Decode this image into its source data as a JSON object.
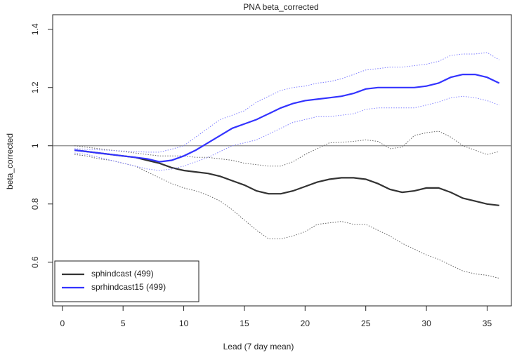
{
  "chart_data": {
    "type": "line",
    "title": "PNA beta_corrected",
    "x_label": "Lead (7 day mean)",
    "y_label": "beta_corrected",
    "x": [
      1,
      2,
      3,
      4,
      5,
      6,
      7,
      8,
      9,
      10,
      11,
      12,
      13,
      14,
      15,
      16,
      17,
      18,
      19,
      20,
      21,
      22,
      23,
      24,
      25,
      26,
      27,
      28,
      29,
      30,
      31,
      32,
      33,
      34,
      35,
      36
    ],
    "xlim": [
      -0.8,
      37
    ],
    "xticks": [
      0,
      5,
      10,
      15,
      20,
      25,
      30,
      35
    ],
    "ylim": [
      0.45,
      1.45
    ],
    "yticks": [
      0.6,
      0.8,
      1.0,
      1.2,
      1.4
    ],
    "reference_line": 1.0,
    "legend": "bottomleft",
    "series": [
      {
        "name": "sphindcast (499)",
        "color": "#333333",
        "band_color": "#666666",
        "values": [
          0.985,
          0.98,
          0.975,
          0.97,
          0.965,
          0.96,
          0.95,
          0.94,
          0.925,
          0.915,
          0.91,
          0.905,
          0.895,
          0.88,
          0.865,
          0.845,
          0.835,
          0.835,
          0.845,
          0.86,
          0.875,
          0.885,
          0.89,
          0.89,
          0.885,
          0.87,
          0.85,
          0.84,
          0.845,
          0.855,
          0.855,
          0.84,
          0.82,
          0.81,
          0.8,
          0.795
        ],
        "upper": [
          1.0,
          0.995,
          0.99,
          0.985,
          0.98,
          0.975,
          0.97,
          0.965,
          0.965,
          0.965,
          0.96,
          0.96,
          0.955,
          0.95,
          0.94,
          0.935,
          0.93,
          0.93,
          0.945,
          0.97,
          0.99,
          1.01,
          1.012,
          1.015,
          1.02,
          1.015,
          0.99,
          0.995,
          1.035,
          1.045,
          1.05,
          1.03,
          1.0,
          0.985,
          0.97,
          0.98
        ],
        "lower": [
          0.97,
          0.965,
          0.955,
          0.95,
          0.94,
          0.93,
          0.91,
          0.89,
          0.87,
          0.855,
          0.845,
          0.83,
          0.81,
          0.78,
          0.745,
          0.71,
          0.68,
          0.68,
          0.69,
          0.705,
          0.73,
          0.735,
          0.74,
          0.73,
          0.73,
          0.71,
          0.69,
          0.665,
          0.645,
          0.625,
          0.61,
          0.59,
          0.57,
          0.56,
          0.555,
          0.545
        ]
      },
      {
        "name": "sprhindcast15 (499)",
        "color": "#3333ff",
        "band_color": "#8080ff",
        "values": [
          0.985,
          0.98,
          0.975,
          0.97,
          0.965,
          0.96,
          0.955,
          0.945,
          0.95,
          0.965,
          0.985,
          1.01,
          1.035,
          1.06,
          1.075,
          1.09,
          1.11,
          1.13,
          1.145,
          1.155,
          1.16,
          1.165,
          1.17,
          1.18,
          1.195,
          1.2,
          1.2,
          1.2,
          1.2,
          1.205,
          1.215,
          1.235,
          1.245,
          1.245,
          1.235,
          1.215
        ],
        "upper": [
          0.99,
          0.988,
          0.986,
          0.984,
          0.982,
          0.98,
          0.978,
          0.978,
          0.988,
          1.0,
          1.03,
          1.06,
          1.09,
          1.105,
          1.12,
          1.15,
          1.17,
          1.19,
          1.2,
          1.205,
          1.215,
          1.22,
          1.23,
          1.245,
          1.26,
          1.265,
          1.27,
          1.27,
          1.275,
          1.28,
          1.29,
          1.31,
          1.315,
          1.315,
          1.32,
          1.295
        ],
        "lower": [
          0.975,
          0.97,
          0.96,
          0.95,
          0.94,
          0.93,
          0.92,
          0.915,
          0.92,
          0.93,
          0.945,
          0.96,
          0.98,
          1.0,
          1.01,
          1.02,
          1.04,
          1.06,
          1.08,
          1.09,
          1.1,
          1.1,
          1.105,
          1.11,
          1.125,
          1.13,
          1.13,
          1.13,
          1.13,
          1.14,
          1.15,
          1.165,
          1.17,
          1.165,
          1.155,
          1.14
        ]
      }
    ]
  }
}
